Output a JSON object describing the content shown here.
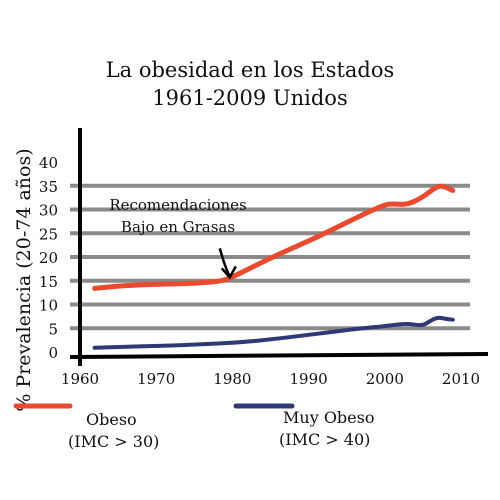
{
  "chart_data": {
    "type": "line",
    "title_lines": [
      "La obesidad en los Estados",
      "1961-2009 Unidos"
    ],
    "ylabel": "% Prevalencia (20-74 años)",
    "xlabel": "",
    "xlim": [
      1960,
      2010
    ],
    "ylim": [
      0,
      40
    ],
    "x_ticks": [
      1960,
      1970,
      1980,
      1990,
      2000,
      2010
    ],
    "y_ticks": [
      0,
      5,
      10,
      15,
      20,
      25,
      30,
      35,
      40
    ],
    "grid": true,
    "legend_position": "bottom",
    "annotation": {
      "lines": [
        "Recomendaciones",
        "Bajo en Grasas"
      ],
      "x": 1979,
      "y": 15.5
    },
    "series": [
      {
        "name": "Obeso",
        "name_sub": "(IMC > 30)",
        "color": "#ea4a2e",
        "x": [
          1961,
          1965,
          1970,
          1975,
          1978,
          1980,
          1985,
          1990,
          1995,
          1999,
          2000,
          2002,
          2004,
          2006,
          2007,
          2008
        ],
        "y": [
          13.4,
          14.0,
          14.3,
          14.5,
          15.0,
          16.5,
          20.5,
          24.0,
          28.0,
          31.0,
          31.2,
          31.0,
          32.5,
          35.0,
          34.8,
          34.0
        ]
      },
      {
        "name": "Muy Obeso",
        "name_sub": "(IMC > 40)",
        "color": "#2e3a78",
        "x": [
          1961,
          1965,
          1970,
          1975,
          1980,
          1985,
          1990,
          1995,
          2000,
          2002,
          2004,
          2005,
          2006,
          2007,
          2008
        ],
        "y": [
          0.9,
          1.1,
          1.3,
          1.6,
          2.0,
          2.8,
          3.8,
          4.8,
          5.6,
          6.0,
          5.5,
          6.5,
          7.3,
          7.0,
          6.8
        ]
      }
    ]
  }
}
